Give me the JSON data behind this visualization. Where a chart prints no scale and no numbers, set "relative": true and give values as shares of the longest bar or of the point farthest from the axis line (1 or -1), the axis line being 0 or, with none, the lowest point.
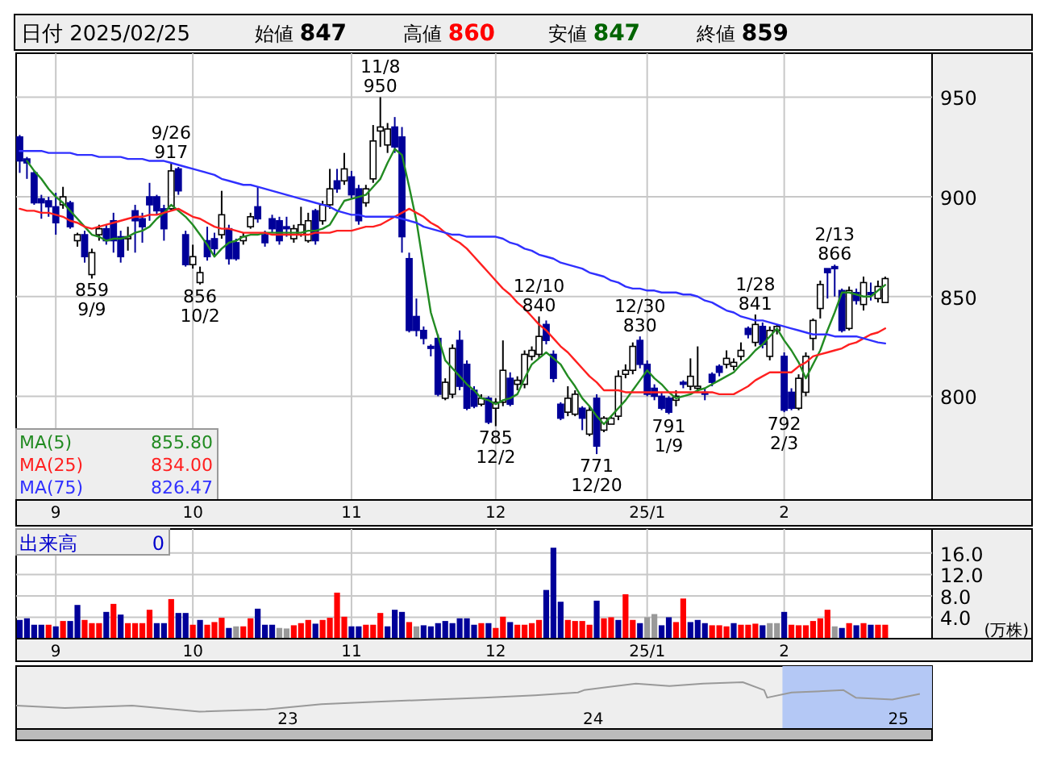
{
  "chart_data": [
    {
      "type": "candlestick",
      "title": "日付 2025/02/25",
      "grid": true,
      "colors": [
        "#000099",
        "#000099",
        "#000099",
        "#000099",
        "#000099",
        "#000099",
        "#ffffff",
        "#000099",
        "#ffffff",
        "#000099",
        "#ffffff",
        "#ffffff",
        "#000099",
        "#000099",
        "#000099",
        "#ffffff",
        "#000099",
        "#000099",
        "#000099",
        "#000099",
        "#000099",
        "#ffffff",
        "#000099",
        "#000099",
        "#ffffff",
        "#ffffff",
        "#000099",
        "#000099",
        "#ffffff",
        "#000099",
        "#000099",
        "#ffffff",
        "#ffffff",
        "#000099",
        "#000099",
        "#000099",
        "#000099",
        "#000099",
        "#ffffff",
        "#ffffff",
        "#ffffff",
        "#000099",
        "#ffffff",
        "#ffffff",
        "#000099",
        "#ffffff",
        "#000099",
        "#000099",
        "#ffffff",
        "#ffffff",
        "#ffffff",
        "#ffffff",
        "#000099",
        "#000099",
        "#000099",
        "#000099",
        "#000099",
        "#000099",
        "#000099",
        "#ffffff",
        "#ffffff",
        "#000099",
        "#000099",
        "#000099",
        "#ffffff",
        "#000099",
        "#ffffff",
        "#ffffff",
        "#000099",
        "#ffffff",
        "#ffffff",
        "#ffffff",
        "#ffffff",
        "#000099",
        "#000099",
        "#000099",
        "#ffffff",
        "#ffffff",
        "#000099",
        "#ffffff",
        "#000099",
        "#ffffff",
        "#ffffff",
        "#ffffff",
        "#ffffff",
        "#ffffff",
        "#000099",
        "#000099",
        "#000099",
        "#000099",
        "#000099",
        "#ffffff",
        "#000099",
        "#ffffff",
        "#ffffff",
        "#000099",
        "#000099",
        "#000099",
        "#ffffff",
        "#ffffff",
        "#ffffff",
        "#000099",
        "#ffffff",
        "#000099",
        "#ffffff",
        "#ffffff",
        "#000099",
        "#000099",
        "#ffffff",
        "#ffffff",
        "#ffffff",
        "#ffffff",
        "#000099",
        "#000099",
        "#000099",
        "#ffffff",
        "#000099",
        "#ffffff",
        "#000099",
        "#ffffff",
        "#ffffff"
      ],
      "ylim": [
        748,
        972
      ],
      "yticks": [
        800,
        850,
        900,
        950
      ],
      "categories": [
        null,
        null,
        null,
        null,
        null,
        "9",
        null,
        null,
        null,
        null,
        null,
        null,
        null,
        null,
        null,
        null,
        null,
        null,
        null,
        null,
        null,
        null,
        null,
        null,
        "10",
        null,
        null,
        null,
        null,
        null,
        null,
        null,
        null,
        null,
        null,
        null,
        null,
        null,
        null,
        null,
        null,
        null,
        null,
        null,
        null,
        null,
        "11",
        null,
        null,
        null,
        null,
        null,
        null,
        null,
        null,
        null,
        null,
        null,
        null,
        null,
        null,
        null,
        null,
        null,
        null,
        null,
        "12",
        null,
        null,
        null,
        null,
        null,
        null,
        null,
        null,
        null,
        null,
        null,
        null,
        null,
        null,
        null,
        null,
        null,
        null,
        null,
        null,
        "25/1",
        null,
        null,
        null,
        null,
        null,
        null,
        null,
        null,
        null,
        null,
        null,
        null,
        null,
        null,
        null,
        null,
        null,
        null,
        "2",
        null,
        null,
        null,
        null,
        null,
        null,
        null,
        null,
        null,
        null,
        null,
        null,
        null,
        null
      ],
      "ohlc": [
        [
          930,
          931,
          912,
          918
        ],
        [
          919,
          920,
          909,
          917
        ],
        [
          912,
          913,
          896,
          897
        ],
        [
          899,
          901,
          889,
          897
        ],
        [
          898,
          900,
          890,
          895
        ],
        [
          895,
          902,
          881,
          887
        ],
        [
          896,
          905,
          894,
          900
        ],
        [
          897,
          898,
          884,
          885
        ],
        [
          878,
          882,
          875,
          881
        ],
        [
          881,
          883,
          867,
          870
        ],
        [
          861,
          874,
          859,
          872
        ],
        [
          881,
          886,
          878,
          884
        ],
        [
          884,
          886,
          876,
          878
        ],
        [
          888,
          892,
          872,
          878
        ],
        [
          880,
          883,
          867,
          870
        ],
        [
          879,
          885,
          873,
          880
        ],
        [
          893,
          896,
          872,
          888
        ],
        [
          889,
          892,
          877,
          885
        ],
        [
          900,
          907,
          888,
          896
        ],
        [
          900,
          901,
          891,
          893
        ],
        [
          894,
          896,
          878,
          884
        ],
        [
          894,
          917,
          893,
          913
        ],
        [
          914,
          915,
          901,
          903
        ],
        [
          881,
          883,
          865,
          866
        ],
        [
          866,
          876,
          864,
          870
        ],
        [
          857,
          865,
          856,
          862
        ],
        [
          878,
          885,
          868,
          870
        ],
        [
          879,
          882,
          870,
          874
        ],
        [
          881,
          903,
          879,
          891
        ],
        [
          884,
          886,
          866,
          869
        ],
        [
          877,
          879,
          868,
          869
        ],
        [
          878,
          882,
          876,
          880
        ],
        [
          885,
          892,
          884,
          890
        ],
        [
          895,
          905,
          887,
          889
        ],
        [
          881,
          883,
          875,
          877
        ],
        [
          889,
          891,
          882,
          884
        ],
        [
          888,
          890,
          876,
          878
        ],
        [
          885,
          890,
          880,
          884
        ],
        [
          879,
          886,
          877,
          884
        ],
        [
          881,
          895,
          880,
          886
        ],
        [
          878,
          892,
          877,
          888
        ],
        [
          893,
          894,
          876,
          878
        ],
        [
          888,
          898,
          886,
          896
        ],
        [
          896,
          914,
          894,
          904
        ],
        [
          908,
          914,
          902,
          904
        ],
        [
          908,
          922,
          906,
          914
        ],
        [
          910,
          913,
          899,
          901
        ],
        [
          904,
          906,
          886,
          888
        ],
        [
          897,
          906,
          895,
          904
        ],
        [
          909,
          936,
          907,
          928
        ],
        [
          933,
          950,
          925,
          935
        ],
        [
          926,
          937,
          922,
          934
        ],
        [
          935,
          940,
          922,
          925
        ],
        [
          930,
          935,
          872,
          880
        ],
        [
          869,
          872,
          832,
          833
        ],
        [
          840,
          849,
          830,
          833
        ],
        [
          833,
          835,
          826,
          829
        ],
        [
          825,
          826,
          820,
          824
        ],
        [
          829,
          831,
          800,
          801
        ],
        [
          799,
          809,
          798,
          807
        ],
        [
          801,
          826,
          799,
          824
        ],
        [
          828,
          833,
          803,
          805
        ],
        [
          816,
          818,
          793,
          794
        ],
        [
          803,
          805,
          794,
          795
        ],
        [
          796,
          801,
          795,
          799
        ],
        [
          799,
          800,
          786,
          787
        ],
        [
          794,
          799,
          785,
          797
        ],
        [
          797,
          828,
          795,
          813
        ],
        [
          809,
          812,
          795,
          796
        ],
        [
          806,
          810,
          803,
          808
        ],
        [
          806,
          823,
          804,
          821
        ],
        [
          820,
          825,
          818,
          823
        ],
        [
          821,
          840,
          819,
          830
        ],
        [
          836,
          838,
          826,
          828
        ],
        [
          821,
          823,
          807,
          809
        ],
        [
          796,
          797,
          788,
          789
        ],
        [
          792,
          805,
          790,
          799
        ],
        [
          791,
          803,
          790,
          801
        ],
        [
          794,
          795,
          783,
          789
        ],
        [
          781,
          795,
          780,
          793
        ],
        [
          799,
          801,
          771,
          775
        ],
        [
          783,
          790,
          782,
          789
        ],
        [
          786,
          790,
          786,
          789
        ],
        [
          790,
          813,
          788,
          810
        ],
        [
          811,
          816,
          809,
          813
        ],
        [
          813,
          827,
          811,
          825
        ],
        [
          828,
          830,
          814,
          816
        ],
        [
          816,
          818,
          800,
          801
        ],
        [
          804,
          806,
          798,
          800
        ],
        [
          800,
          802,
          793,
          794
        ],
        [
          799,
          800,
          791,
          792
        ],
        [
          798,
          803,
          795,
          800
        ],
        [
          807,
          808,
          804,
          806
        ],
        [
          805,
          819,
          803,
          810
        ],
        [
          804,
          825,
          802,
          805
        ],
        [
          802,
          804,
          798,
          801
        ],
        [
          811,
          812,
          805,
          807
        ],
        [
          815,
          816,
          810,
          812
        ],
        [
          816,
          823,
          814,
          819
        ],
        [
          815,
          819,
          813,
          817
        ],
        [
          820,
          827,
          818,
          823
        ],
        [
          834,
          835,
          829,
          831
        ],
        [
          827,
          841,
          825,
          836
        ],
        [
          835,
          837,
          824,
          826
        ],
        [
          820,
          835,
          818,
          833
        ],
        [
          833,
          836,
          831,
          835
        ],
        [
          820,
          822,
          792,
          793
        ],
        [
          802,
          804,
          793,
          794
        ],
        [
          794,
          811,
          793,
          809
        ],
        [
          802,
          822,
          800,
          820
        ],
        [
          829,
          839,
          823,
          838
        ],
        [
          844,
          858,
          839,
          856
        ],
        [
          864,
          864,
          849,
          862
        ],
        [
          865,
          866,
          850,
          864
        ],
        [
          853,
          854,
          832,
          833
        ],
        [
          834,
          855,
          833,
          853
        ],
        [
          852,
          854,
          846,
          848
        ],
        [
          846,
          860,
          843,
          857
        ],
        [
          852,
          857,
          848,
          851
        ],
        [
          849,
          858,
          847,
          855
        ],
        [
          847,
          860,
          847,
          859
        ]
      ],
      "series": [
        {
          "name": "MA(5) 855.80",
          "type": "line",
          "color": "#228b22",
          "values": [
            null,
            918,
            913,
            909,
            904,
            900,
            897,
            893,
            889,
            885,
            881,
            880,
            878,
            879,
            879,
            880,
            882,
            883,
            885,
            889,
            892,
            896,
            893,
            890,
            886,
            881,
            876,
            870,
            874,
            877,
            878,
            880,
            881,
            881,
            882,
            882,
            882,
            882,
            882,
            882,
            883,
            883,
            884,
            886,
            892,
            898,
            899,
            900,
            901,
            905,
            909,
            917,
            924,
            921,
            905,
            888,
            865,
            842,
            830,
            818,
            814,
            810,
            806,
            803,
            799,
            798,
            796,
            798,
            799,
            801,
            809,
            816,
            819,
            822,
            819,
            816,
            810,
            805,
            799,
            795,
            790,
            786,
            790,
            794,
            798,
            803,
            808,
            813,
            809,
            806,
            802,
            799,
            800,
            801,
            803,
            804,
            806,
            808,
            810,
            812,
            816,
            819,
            823,
            826,
            830,
            834,
            828,
            823,
            817,
            809,
            816,
            823,
            833,
            842,
            852,
            852,
            851,
            850,
            850,
            853,
            855.8
          ]
        },
        {
          "name": "MA(25) 834.00",
          "type": "line",
          "color": "#ff2020",
          "values": [
            894,
            893,
            893,
            892,
            892,
            891,
            890,
            888,
            887,
            885,
            884,
            885,
            886,
            887,
            888,
            889,
            890,
            890,
            891,
            891,
            892,
            893,
            894,
            892,
            890,
            889,
            887,
            885,
            884,
            884,
            883,
            882,
            882,
            882,
            882,
            881,
            881,
            881,
            881,
            881,
            881,
            882,
            882,
            882,
            883,
            883,
            883,
            884,
            885,
            885,
            886,
            888,
            890,
            892,
            894,
            892,
            890,
            887,
            885,
            882,
            879,
            877,
            874,
            870,
            866,
            862,
            858,
            854,
            851,
            847,
            844,
            840,
            836,
            833,
            829,
            825,
            822,
            818,
            814,
            810,
            807,
            803,
            803,
            803,
            802,
            802,
            802,
            802,
            802,
            802,
            802,
            802,
            802,
            802,
            802,
            802,
            802,
            801,
            801,
            801,
            803,
            805,
            808,
            810,
            812,
            812,
            812,
            812,
            815,
            817,
            820,
            821,
            822,
            823,
            824,
            826,
            827,
            829,
            831,
            832,
            834
          ]
        },
        {
          "name": "MA(75) 826.47",
          "type": "line",
          "color": "#3030ff",
          "values": [
            923,
            923,
            923,
            923,
            922,
            922,
            922,
            922,
            921,
            921,
            921,
            920,
            920,
            920,
            920,
            919,
            919,
            919,
            918,
            918,
            918,
            917,
            916,
            915,
            914,
            913,
            912,
            911,
            909,
            908,
            907,
            906,
            906,
            905,
            904,
            903,
            902,
            901,
            900,
            899,
            898,
            897,
            896,
            895,
            893,
            892,
            891,
            891,
            890,
            890,
            890,
            890,
            890,
            889,
            888,
            887,
            885,
            884,
            883,
            882,
            881,
            881,
            880,
            880,
            880,
            880,
            880,
            879,
            877,
            876,
            874,
            873,
            871,
            870,
            869,
            867,
            866,
            865,
            864,
            862,
            861,
            860,
            858,
            857,
            855,
            854,
            854,
            853,
            853,
            852,
            852,
            852,
            851,
            851,
            850,
            848,
            847,
            845,
            843,
            842,
            840,
            839,
            838,
            838,
            837,
            836,
            835,
            834,
            833,
            832,
            831,
            831,
            831,
            830,
            830,
            830,
            830,
            829,
            828,
            827,
            826.47
          ]
        }
      ],
      "annotations": [
        "始値 847",
        "高値 860",
        "安値 847",
        "終値 859",
        {
          "text": "859\n9/9",
          "y": 859
        },
        {
          "text": "9/26\n917",
          "y": 917
        },
        {
          "text": "856\n10/2",
          "y": 856
        },
        {
          "text": "11/8\n950",
          "y": 950
        },
        {
          "text": "785\n12/2",
          "y": 785
        },
        {
          "text": "12/10\n840",
          "y": 840
        },
        {
          "text": "771\n12/20",
          "y": 771
        },
        {
          "text": "12/30\n830",
          "y": 830
        },
        {
          "text": "791\n1/9",
          "y": 791
        },
        {
          "text": "1/28\n841",
          "y": 841
        },
        {
          "text": "792\n2/3",
          "y": 792
        },
        {
          "text": "2/13\n866",
          "y": 866
        }
      ]
    },
    {
      "type": "bar",
      "title": "出来高",
      "annotations": [
        "0"
      ],
      "ylabel": "(万株)",
      "grid": true,
      "ylim": [
        0,
        20.5
      ],
      "yticks": [
        {
          "value": 4,
          "label": "4.0"
        },
        {
          "value": 8,
          "label": "8.0"
        },
        {
          "value": 12,
          "label": "12.0"
        },
        {
          "value": 16,
          "label": "16.0"
        }
      ],
      "categories": [
        null,
        null,
        null,
        null,
        null,
        "9",
        null,
        null,
        null,
        null,
        null,
        null,
        null,
        null,
        null,
        null,
        null,
        null,
        null,
        null,
        null,
        null,
        null,
        null,
        "10",
        null,
        null,
        null,
        null,
        null,
        null,
        null,
        null,
        null,
        null,
        null,
        null,
        null,
        null,
        null,
        null,
        null,
        null,
        null,
        null,
        null,
        "11",
        null,
        null,
        null,
        null,
        null,
        null,
        null,
        null,
        null,
        null,
        null,
        null,
        null,
        null,
        null,
        null,
        null,
        null,
        null,
        "12",
        null,
        null,
        null,
        null,
        null,
        null,
        null,
        null,
        null,
        null,
        null,
        null,
        null,
        null,
        null,
        null,
        null,
        null,
        null,
        null,
        "25/1",
        null,
        null,
        null,
        null,
        null,
        null,
        null,
        null,
        null,
        null,
        null,
        null,
        null,
        null,
        null,
        null,
        null,
        null,
        "2",
        null,
        null,
        null,
        null,
        null,
        null,
        null,
        null,
        null,
        null,
        null,
        null,
        null,
        null
      ],
      "values": [
        3.5,
        3.8,
        2.6,
        2.6,
        2.6,
        2.3,
        3.3,
        3.3,
        6.3,
        3.5,
        2.9,
        2.9,
        5,
        6.5,
        4.5,
        2.9,
        2.9,
        2.9,
        5.4,
        2.9,
        2.9,
        7.4,
        4.8,
        4.8,
        2.6,
        3.5,
        2.6,
        3.1,
        3.9,
        2,
        2.3,
        2.3,
        3.8,
        5.6,
        2.6,
        2.6,
        2,
        1.9,
        2.5,
        2.9,
        3.5,
        2.8,
        3.5,
        3.9,
        8.6,
        4.1,
        2.3,
        2.3,
        2.6,
        2.6,
        4.8,
        2.3,
        5.4,
        5,
        3.1,
        2.3,
        2.5,
        2.3,
        2.9,
        3.3,
        2.9,
        3.8,
        3.8,
        2.6,
        2.9,
        2.9,
        2,
        4.1,
        3.1,
        2.6,
        2.6,
        2.9,
        3.5,
        9.1,
        17,
        6.9,
        3.5,
        3.3,
        3.3,
        2.6,
        7.1,
        3.8,
        4,
        3.5,
        8.3,
        3.5,
        2.9,
        4,
        4.6,
        2.5,
        4,
        3.1,
        7.5,
        3.1,
        3.5,
        2.9,
        2.5,
        2.5,
        2.3,
        2.9,
        2.6,
        2.6,
        2.8,
        2.5,
        2.9,
        2.9,
        5,
        2.6,
        2.5,
        2.5,
        3.3,
        3.8,
        5.4,
        2.3,
        2,
        2.9,
        2.5,
        2.9,
        2.6,
        2.6,
        2.6
      ],
      "colors": [
        "#000099",
        "#000099",
        "#000099",
        "#000099",
        "#ff0000",
        "#000099",
        "#ff0000",
        "#000099",
        "#000099",
        "#ff0000",
        "#ff0000",
        "#ff0000",
        "#000099",
        "#ff0000",
        "#000099",
        "#ff0000",
        "#ff0000",
        "#ff0000",
        "#ff0000",
        "#000099",
        "#000099",
        "#ff0000",
        "#000099",
        "#000099",
        "#ff0000",
        "#000099",
        "#ff0000",
        "#ff0000",
        "#ff0000",
        "#000099",
        "#999999",
        "#ff0000",
        "#ff0000",
        "#000099",
        "#000099",
        "#000099",
        "#999999",
        "#999999",
        "#ff0000",
        "#ff0000",
        "#ff0000",
        "#000099",
        "#ff0000",
        "#ff0000",
        "#ff0000",
        "#ff0000",
        "#000099",
        "#000099",
        "#ff0000",
        "#ff0000",
        "#ff0000",
        "#000099",
        "#000099",
        "#000099",
        "#ff0000",
        "#999999",
        "#000099",
        "#000099",
        "#000099",
        "#000099",
        "#000099",
        "#000099",
        "#000099",
        "#000099",
        "#ff0000",
        "#000099",
        "#ff0000",
        "#ff0000",
        "#000099",
        "#ff0000",
        "#ff0000",
        "#ff0000",
        "#ff0000",
        "#000099",
        "#000099",
        "#000099",
        "#ff0000",
        "#ff0000",
        "#ff0000",
        "#ff0000",
        "#000099",
        "#ff0000",
        "#ff0000",
        "#000099",
        "#ff0000",
        "#ff0000",
        "#000099",
        "#999999",
        "#999999",
        "#000099",
        "#000099",
        "#ff0000",
        "#ff0000",
        "#000099",
        "#000099",
        "#000099",
        "#ff0000",
        "#ff0000",
        "#ff0000",
        "#000099",
        "#ff0000",
        "#ff0000",
        "#ff0000",
        "#000099",
        "#999999",
        "#999999",
        "#000099",
        "#ff0000",
        "#ff0000",
        "#ff0000",
        "#ff0000",
        "#ff0000",
        "#ff0000",
        "#999999",
        "#000099",
        "#ff0000",
        "#000099",
        "#ff0000",
        "#000099",
        "#ff0000",
        "#ff0000"
      ]
    },
    {
      "type": "line",
      "relative": true,
      "color": "#999999",
      "xlim": [
        22.11,
        25.11
      ],
      "xticks": [
        23,
        24,
        25
      ],
      "bands": [
        {
          "axis": "x",
          "from": 24.62,
          "to": 25.11,
          "color": "#b4c8f5"
        }
      ],
      "x": [
        22.11,
        22.27,
        22.49,
        22.71,
        22.93,
        23.11,
        23.29,
        23.48,
        23.64,
        23.81,
        23.95,
        23.97,
        24.14,
        24.25,
        24.36,
        24.49,
        24.56,
        24.57,
        24.65,
        24.82,
        24.86,
        24.98,
        25.07
      ],
      "values": [
        0.5,
        0.45,
        0.5,
        0.37,
        0.42,
        0.53,
        0.58,
        0.63,
        0.67,
        0.72,
        0.78,
        0.83,
        0.97,
        0.92,
        0.97,
        1,
        0.83,
        0.67,
        0.78,
        0.83,
        0.67,
        0.63,
        0.75
      ]
    }
  ]
}
